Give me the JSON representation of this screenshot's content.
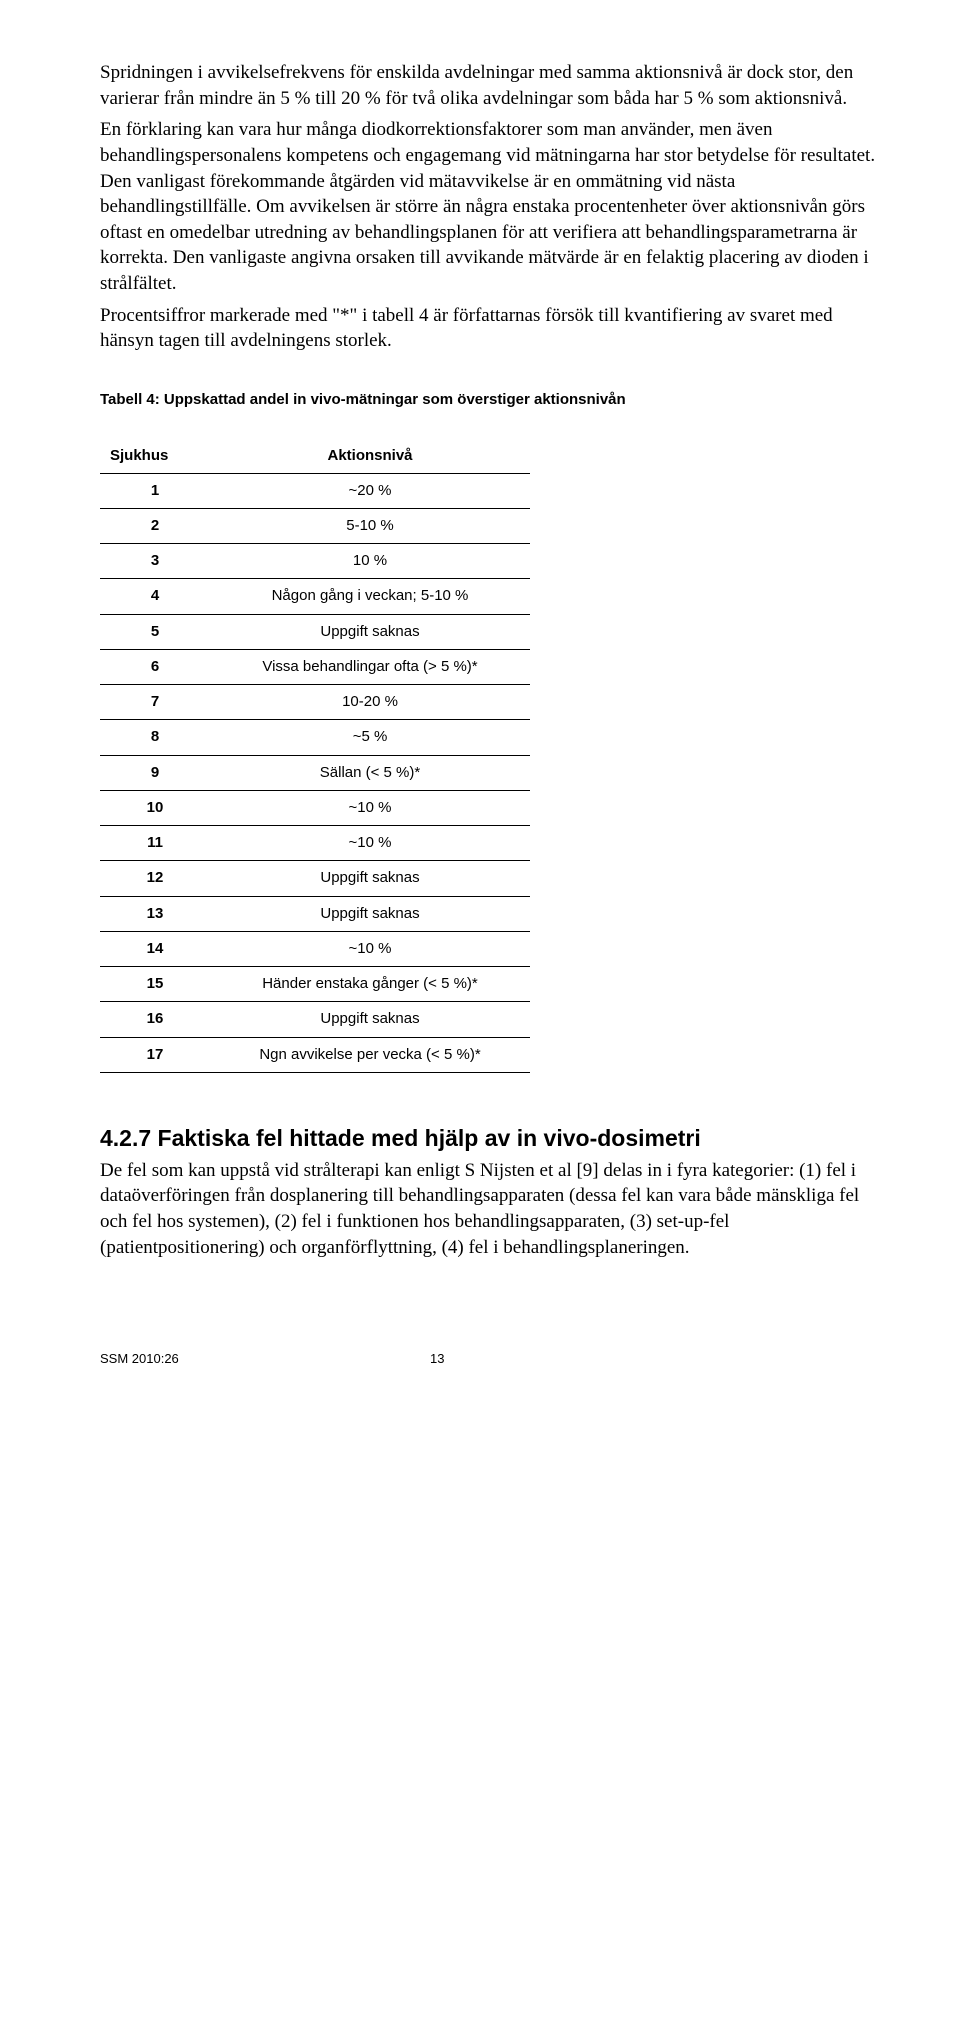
{
  "paragraph1": "Spridningen i avvikelsefrekvens för enskilda avdelningar med samma aktionsnivå är dock stor, den varierar från mindre än 5 % till 20 % för två olika avdelningar som båda har 5 % som aktionsnivå.",
  "paragraph2": "En förklaring kan vara hur många diodkorrektionsfaktorer som man använder, men även behandlingspersonalens kompetens och engagemang vid mätningarna har stor betydelse för resultatet. Den vanligast förekommande åtgärden vid mätavvikelse är en ommätning vid nästa behandlingstillfälle. Om avvikelsen är större än några enstaka procentenheter över aktionsnivån görs oftast en omedelbar utredning av behandlingsplanen för att verifiera att behandlingsparametrarna är korrekta. Den vanligaste angivna orsaken till avvikande mätvärde är en felaktig placering av dioden i strålfältet.",
  "paragraph3": "Procentsiffror markerade med \"*\" i tabell 4 är författarnas försök till kvantifiering av svaret med hänsyn tagen till avdelningens storlek.",
  "table": {
    "caption": "Tabell 4: Uppskattad andel in vivo-mätningar som överstiger aktionsnivån",
    "columns": [
      "Sjukhus",
      "Aktionsnivå"
    ],
    "rows": [
      [
        "1",
        "~20 %"
      ],
      [
        "2",
        "5-10 %"
      ],
      [
        "3",
        "10 %"
      ],
      [
        "4",
        "Någon gång i veckan; 5-10 %"
      ],
      [
        "5",
        "Uppgift saknas"
      ],
      [
        "6",
        "Vissa behandlingar ofta (> 5 %)*"
      ],
      [
        "7",
        "10-20 %"
      ],
      [
        "8",
        "~5 %"
      ],
      [
        "9",
        "Sällan (< 5 %)*"
      ],
      [
        "10",
        "~10 %"
      ],
      [
        "11",
        "~10 %"
      ],
      [
        "12",
        "Uppgift saknas"
      ],
      [
        "13",
        "Uppgift saknas"
      ],
      [
        "14",
        "~10 %"
      ],
      [
        "15",
        "Händer enstaka gånger (< 5 %)*"
      ],
      [
        "16",
        "Uppgift saknas"
      ],
      [
        "17",
        "Ngn avvikelse per vecka (< 5 %)*"
      ]
    ]
  },
  "section": {
    "heading": "4.2.7 Faktiska fel hittade med hjälp av in vivo-dosimetri",
    "body": "De fel som kan uppstå vid strålterapi kan enligt S Nijsten et al [9] delas in i fyra kategorier: (1) fel i dataöverföringen från dosplanering till behandlingsapparaten (dessa fel kan vara både mänskliga fel och fel hos systemen), (2) fel i funktionen hos behandlingsapparaten, (3) set-up-fel (patientpositionering) och organförflyttning, (4) fel i behandlingsplaneringen."
  },
  "footer": {
    "doc": "SSM 2010:26",
    "page": "13"
  }
}
